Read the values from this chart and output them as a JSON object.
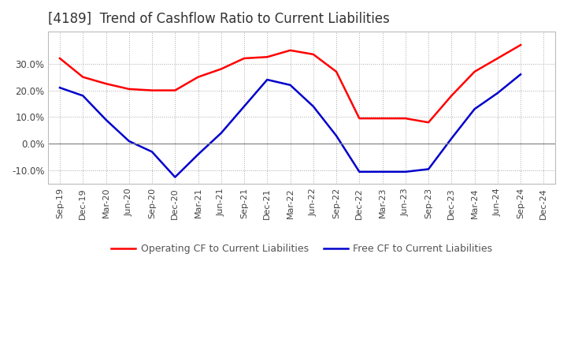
{
  "title": "[4189]  Trend of Cashflow Ratio to Current Liabilities",
  "title_fontsize": 12,
  "x_labels": [
    "Sep-19",
    "Dec-19",
    "Mar-20",
    "Jun-20",
    "Sep-20",
    "Dec-20",
    "Mar-21",
    "Jun-21",
    "Sep-21",
    "Dec-21",
    "Mar-22",
    "Jun-22",
    "Sep-22",
    "Dec-22",
    "Mar-23",
    "Jun-23",
    "Sep-23",
    "Dec-23",
    "Mar-24",
    "Jun-24",
    "Sep-24",
    "Dec-24"
  ],
  "operating_cf": [
    32.0,
    25.0,
    22.5,
    20.5,
    20.0,
    20.0,
    25.0,
    28.0,
    32.0,
    32.5,
    35.0,
    33.5,
    27.0,
    9.5,
    9.5,
    9.5,
    8.0,
    null,
    null,
    null,
    null,
    null
  ],
  "free_cf": [
    21.0,
    18.0,
    null,
    null,
    null,
    -12.5,
    null,
    null,
    null,
    24.0,
    null,
    null,
    null,
    -10.5,
    -10.5,
    -10.5,
    null,
    null,
    null,
    null,
    26.0,
    null
  ],
  "operating_cf_full": [
    32.0,
    25.0,
    22.5,
    20.5,
    20.0,
    20.0,
    25.0,
    28.0,
    32.0,
    32.5,
    35.0,
    33.5,
    27.0,
    9.5,
    9.5,
    9.5,
    8.0,
    18.0,
    27.0,
    32.0,
    37.0,
    null
  ],
  "free_cf_full": [
    21.0,
    18.0,
    9.0,
    1.0,
    -3.0,
    -12.5,
    -4.0,
    4.0,
    14.0,
    24.0,
    22.0,
    14.0,
    3.0,
    -10.5,
    -10.5,
    -10.5,
    -9.5,
    2.0,
    13.0,
    19.0,
    26.0,
    null
  ],
  "ylim": [
    -15,
    42
  ],
  "yticks": [
    -10.0,
    0.0,
    10.0,
    20.0,
    30.0
  ],
  "operating_color": "#FF0000",
  "free_color": "#0000CC",
  "grid_color": "#AAAAAA",
  "background_color": "#FFFFFF",
  "legend_operating": "Operating CF to Current Liabilities",
  "legend_free": "Free CF to Current Liabilities"
}
